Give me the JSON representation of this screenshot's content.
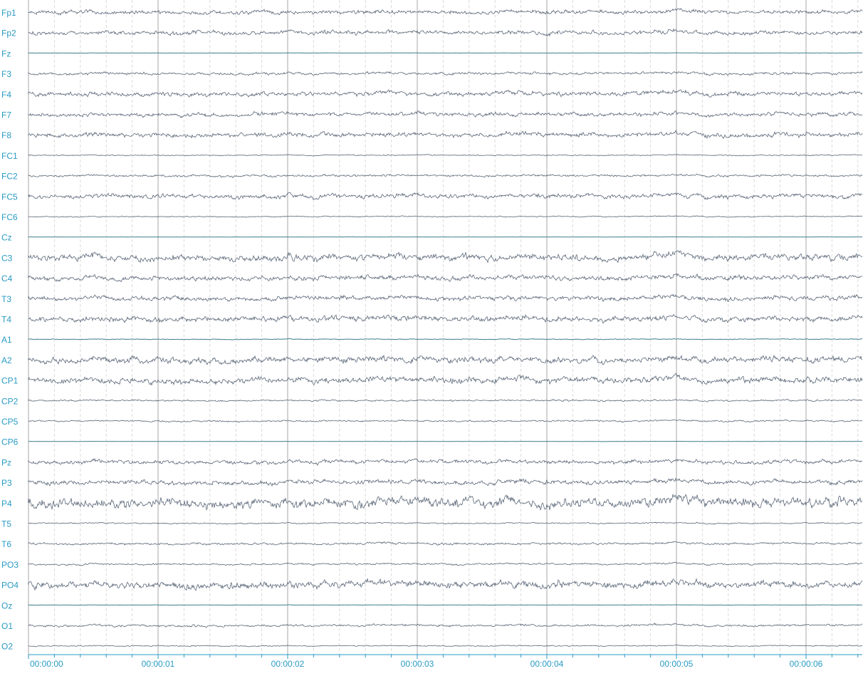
{
  "chart_data": {
    "type": "line",
    "x_range_seconds": [
      0,
      6.45
    ],
    "channels": [
      {
        "name": "Fp1",
        "amp": 4.5
      },
      {
        "name": "Fp2",
        "amp": 4.5
      },
      {
        "name": "Fz",
        "amp": 0.3
      },
      {
        "name": "F3",
        "amp": 3.0
      },
      {
        "name": "F4",
        "amp": 5.0
      },
      {
        "name": "F7",
        "amp": 4.5
      },
      {
        "name": "F8",
        "amp": 5.0
      },
      {
        "name": "FC1",
        "amp": 1.2
      },
      {
        "name": "FC2",
        "amp": 2.5
      },
      {
        "name": "FC5",
        "amp": 5.0
      },
      {
        "name": "FC6",
        "amp": 1.2
      },
      {
        "name": "Cz",
        "amp": 0.2
      },
      {
        "name": "C3",
        "amp": 7.5
      },
      {
        "name": "C4",
        "amp": 5.5
      },
      {
        "name": "T3",
        "amp": 5.0
      },
      {
        "name": "T4",
        "amp": 6.0
      },
      {
        "name": "A1",
        "amp": 0.8
      },
      {
        "name": "A2",
        "amp": 7.0
      },
      {
        "name": "CP1",
        "amp": 7.0
      },
      {
        "name": "CP2",
        "amp": 2.0
      },
      {
        "name": "CP5",
        "amp": 1.8
      },
      {
        "name": "CP6",
        "amp": 0.2
      },
      {
        "name": "Pz",
        "amp": 4.5
      },
      {
        "name": "P3",
        "amp": 5.0
      },
      {
        "name": "P4",
        "amp": 11.0
      },
      {
        "name": "T5",
        "amp": 1.5
      },
      {
        "name": "T6",
        "amp": 2.5
      },
      {
        "name": "PO3",
        "amp": 2.0
      },
      {
        "name": "PO4",
        "amp": 8.0
      },
      {
        "name": "Oz",
        "amp": 0.3
      },
      {
        "name": "O1",
        "amp": 2.5
      },
      {
        "name": "O2",
        "amp": 1.2
      }
    ],
    "time_ticks": [
      {
        "t": 0,
        "label": "00:00:00"
      },
      {
        "t": 1,
        "label": "00:00:01"
      },
      {
        "t": 2,
        "label": "00:00:02"
      },
      {
        "t": 3,
        "label": "00:00:03"
      },
      {
        "t": 4,
        "label": "00:00:04"
      },
      {
        "t": 5,
        "label": "00:00:05"
      },
      {
        "t": 6,
        "label": "00:00:06"
      }
    ],
    "minor_grid_step_seconds": 0.2,
    "grid": true,
    "colors": {
      "signal": "#5a6778",
      "label": "#2a9bc4",
      "major_grid": "#c8c8c8",
      "minor_grid": "#dadada",
      "flat_line": "#3f7f8c",
      "axis": "#2a9bc4"
    }
  }
}
